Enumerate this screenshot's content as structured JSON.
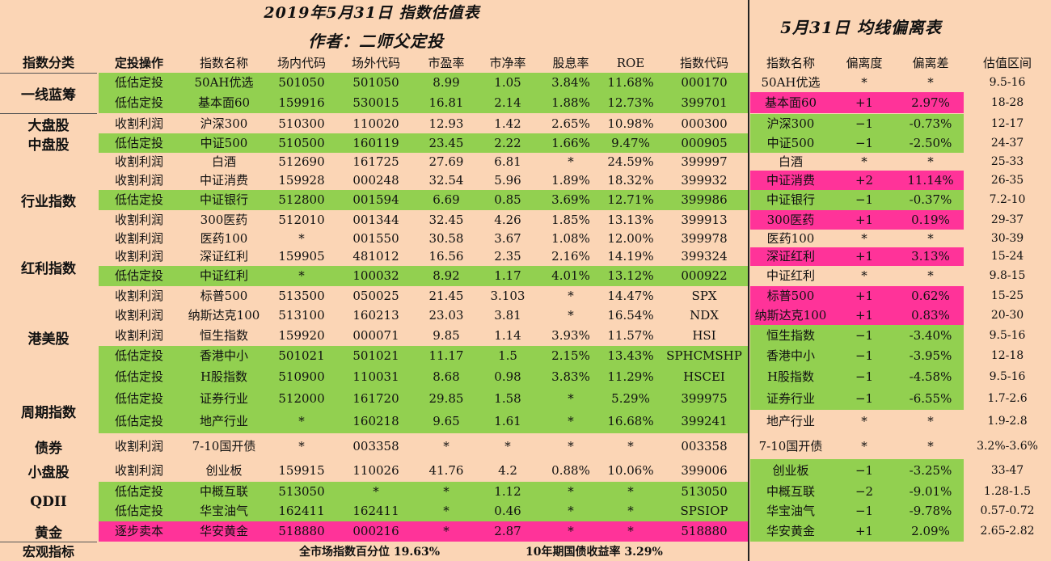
{
  "title_main": "2019年5月31日 指数估值表",
  "author": "作者：二师父定投",
  "title_right": "5月31日 均线偏离表",
  "headers": {
    "category": "指数分类",
    "action": "定投操作",
    "name": "指数名称",
    "onsite": "场内代码",
    "offsite": "场外代码",
    "pe": "市盈率",
    "pb": "市净率",
    "div": "股息率",
    "roe": "ROE",
    "code": "指数代码",
    "name2": "指数名称",
    "dev": "偏离度",
    "devdiff": "偏离差",
    "range": "估值区间"
  },
  "categories": [
    {
      "label": "一线蓝筹",
      "rows": [
        0,
        1
      ]
    },
    {
      "label": "大盘股",
      "rows": [
        2
      ]
    },
    {
      "label": "中盘股",
      "rows": [
        3
      ]
    },
    {
      "label": "行业指数",
      "rows": [
        4,
        5,
        6,
        7,
        8
      ]
    },
    {
      "label": "红利指数",
      "rows": [
        9,
        10
      ]
    },
    {
      "label": "港美股",
      "rows": [
        11,
        12,
        13,
        14,
        15
      ]
    },
    {
      "label": "周期指数",
      "rows": [
        16,
        17
      ]
    },
    {
      "label": "债券",
      "rows": [
        18
      ]
    },
    {
      "label": "小盘股",
      "rows": [
        19
      ]
    },
    {
      "label": "QDII",
      "rows": [
        20,
        21
      ]
    },
    {
      "label": "黄金",
      "rows": [
        22
      ]
    }
  ],
  "rows": [
    {
      "action": "低估定投",
      "name": "50AH优选",
      "onsite": "501050",
      "offsite": "501050",
      "pe": "8.99",
      "pb": "1.05",
      "div": "3.84%",
      "roe": "11.68%",
      "code": "000170",
      "name2": "50AH优选",
      "dev": "*",
      "devdiff": "*",
      "range": "9.5-16",
      "left": "g",
      "right": "n"
    },
    {
      "action": "低估定投",
      "name": "基本面60",
      "onsite": "159916",
      "offsite": "530015",
      "pe": "16.81",
      "pb": "2.14",
      "div": "1.88%",
      "roe": "12.73%",
      "code": "399701",
      "name2": "基本面60",
      "dev": "+1",
      "devdiff": "2.97%",
      "range": "18-28",
      "left": "g",
      "right": "p"
    },
    {
      "action": "收割利润",
      "name": "沪深300",
      "onsite": "510300",
      "offsite": "110020",
      "pe": "12.93",
      "pb": "1.42",
      "div": "2.65%",
      "roe": "10.98%",
      "code": "000300",
      "name2": "沪深300",
      "dev": "−1",
      "devdiff": "-0.73%",
      "range": "12-17",
      "left": "n",
      "right": "g"
    },
    {
      "action": "低估定投",
      "name": "中证500",
      "onsite": "510500",
      "offsite": "160119",
      "pe": "23.45",
      "pb": "2.22",
      "div": "1.66%",
      "roe": "9.47%",
      "code": "000905",
      "name2": "中证500",
      "dev": "−1",
      "devdiff": "-2.50%",
      "range": "24-37",
      "left": "g",
      "right": "g"
    },
    {
      "action": "收割利润",
      "name": "白酒",
      "onsite": "512690",
      "offsite": "161725",
      "pe": "27.69",
      "pb": "6.81",
      "div": "*",
      "roe": "24.59%",
      "code": "399997",
      "name2": "白酒",
      "dev": "*",
      "devdiff": "*",
      "range": "25-33",
      "left": "n",
      "right": "n"
    },
    {
      "action": "收割利润",
      "name": "中证消费",
      "onsite": "159928",
      "offsite": "000248",
      "pe": "32.54",
      "pb": "5.96",
      "div": "1.89%",
      "roe": "18.32%",
      "code": "399932",
      "name2": "中证消费",
      "dev": "+2",
      "devdiff": "11.14%",
      "range": "26-35",
      "left": "n",
      "right": "p"
    },
    {
      "action": "低估定投",
      "name": "中证银行",
      "onsite": "512800",
      "offsite": "001594",
      "pe": "6.69",
      "pb": "0.85",
      "div": "3.69%",
      "roe": "12.71%",
      "code": "399986",
      "name2": "中证银行",
      "dev": "−1",
      "devdiff": "-0.37%",
      "range": "7.2-10",
      "left": "g",
      "right": "g"
    },
    {
      "action": "收割利润",
      "name": "300医药",
      "onsite": "512010",
      "offsite": "001344",
      "pe": "32.45",
      "pb": "4.26",
      "div": "1.85%",
      "roe": "13.13%",
      "code": "399913",
      "name2": "300医药",
      "dev": "+1",
      "devdiff": "0.19%",
      "range": "29-37",
      "left": "n",
      "right": "p"
    },
    {
      "action": "收割利润",
      "name": "医药100",
      "onsite": "*",
      "offsite": "001550",
      "pe": "30.58",
      "pb": "3.67",
      "div": "1.08%",
      "roe": "12.00%",
      "code": "399978",
      "name2": "医药100",
      "dev": "*",
      "devdiff": "*",
      "range": "30-39",
      "left": "n",
      "right": "n"
    },
    {
      "action": "收割利润",
      "name": "深证红利",
      "onsite": "159905",
      "offsite": "481012",
      "pe": "16.56",
      "pb": "2.35",
      "div": "2.16%",
      "roe": "14.19%",
      "code": "399324",
      "name2": "深证红利",
      "dev": "+1",
      "devdiff": "3.13%",
      "range": "15-24",
      "left": "n",
      "right": "p"
    },
    {
      "action": "低估定投",
      "name": "中证红利",
      "onsite": "*",
      "offsite": "100032",
      "pe": "8.92",
      "pb": "1.17",
      "div": "4.01%",
      "roe": "13.12%",
      "code": "000922",
      "name2": "中证红利",
      "dev": "*",
      "devdiff": "*",
      "range": "9.8-15",
      "left": "g",
      "right": "n"
    },
    {
      "action": "收割利润",
      "name": "标普500",
      "onsite": "513500",
      "offsite": "050025",
      "pe": "21.45",
      "pb": "3.103",
      "div": "*",
      "roe": "14.47%",
      "code": "SPX",
      "name2": "标普500",
      "dev": "+1",
      "devdiff": "0.62%",
      "range": "15-25",
      "left": "n",
      "right": "p"
    },
    {
      "action": "收割利润",
      "name": "纳斯达克100",
      "onsite": "513100",
      "offsite": "160213",
      "pe": "23.03",
      "pb": "3.81",
      "div": "*",
      "roe": "16.54%",
      "code": "NDX",
      "name2": "纳斯达克100",
      "dev": "+1",
      "devdiff": "0.83%",
      "range": "20-30",
      "left": "n",
      "right": "p"
    },
    {
      "action": "收割利润",
      "name": "恒生指数",
      "onsite": "159920",
      "offsite": "000071",
      "pe": "9.85",
      "pb": "1.14",
      "div": "3.93%",
      "roe": "11.57%",
      "code": "HSI",
      "name2": "恒生指数",
      "dev": "−1",
      "devdiff": "-3.40%",
      "range": "9.5-16",
      "left": "n",
      "right": "g"
    },
    {
      "action": "低估定投",
      "name": "香港中小",
      "onsite": "501021",
      "offsite": "501021",
      "pe": "11.17",
      "pb": "1.5",
      "div": "2.15%",
      "roe": "13.43%",
      "code": "SPHCMSHP",
      "name2": "香港中小",
      "dev": "−1",
      "devdiff": "-3.95%",
      "range": "12-18",
      "left": "g",
      "right": "g"
    },
    {
      "action": "低估定投",
      "name": "H股指数",
      "onsite": "510900",
      "offsite": "110031",
      "pe": "8.68",
      "pb": "0.98",
      "div": "3.83%",
      "roe": "11.29%",
      "code": "HSCEI",
      "name2": "H股指数",
      "dev": "−1",
      "devdiff": "-4.58%",
      "range": "9.5-16",
      "left": "g",
      "right": "g"
    },
    {
      "action": "低估定投",
      "name": "证券行业",
      "onsite": "512000",
      "offsite": "161720",
      "pe": "29.85",
      "pb": "1.58",
      "div": "*",
      "roe": "5.29%",
      "code": "399975",
      "name2": "证券行业",
      "dev": "−1",
      "devdiff": "-6.55%",
      "range": "1.7-2.6",
      "left": "g",
      "right": "g"
    },
    {
      "action": "低估定投",
      "name": "地产行业",
      "onsite": "*",
      "offsite": "160218",
      "pe": "9.65",
      "pb": "1.61",
      "div": "*",
      "roe": "16.68%",
      "code": "399241",
      "name2": "地产行业",
      "dev": "*",
      "devdiff": "*",
      "range": "1.9-2.8",
      "left": "g",
      "right": "n"
    },
    {
      "action": "收割利润",
      "name": "7-10国开债",
      "onsite": "*",
      "offsite": "003358",
      "pe": "*",
      "pb": "*",
      "div": "*",
      "roe": "*",
      "code": "003358",
      "name2": "7-10国开债",
      "dev": "*",
      "devdiff": "*",
      "range": "3.2%-3.6%",
      "left": "n",
      "right": "n"
    },
    {
      "action": "收割利润",
      "name": "创业板",
      "onsite": "159915",
      "offsite": "110026",
      "pe": "41.76",
      "pb": "4.2",
      "div": "0.88%",
      "roe": "10.06%",
      "code": "399006",
      "name2": "创业板",
      "dev": "−1",
      "devdiff": "-3.25%",
      "range": "33-47",
      "left": "n",
      "right": "g"
    },
    {
      "action": "低估定投",
      "name": "中概互联",
      "onsite": "513050",
      "offsite": "*",
      "pe": "*",
      "pb": "1.12",
      "div": "*",
      "roe": "*",
      "code": "513050",
      "name2": "中概互联",
      "dev": "−2",
      "devdiff": "-9.01%",
      "range": "1.28-1.5",
      "left": "g",
      "right": "g"
    },
    {
      "action": "低估定投",
      "name": "华宝油气",
      "onsite": "162411",
      "offsite": "162411",
      "pe": "*",
      "pb": "0.46",
      "div": "*",
      "roe": "*",
      "code": "SPSIOP",
      "name2": "华宝油气",
      "dev": "−1",
      "devdiff": "-9.78%",
      "range": "0.57-0.72",
      "left": "g",
      "right": "g"
    },
    {
      "action": "逐步卖本",
      "name": "华安黄金",
      "onsite": "518880",
      "offsite": "000216",
      "pe": "*",
      "pb": "2.87",
      "div": "*",
      "roe": "*",
      "code": "518880",
      "name2": "华安黄金",
      "dev": "+1",
      "devdiff": "2.09%",
      "range": "2.65-2.82",
      "left": "p",
      "right": "g"
    }
  ],
  "footer": {
    "label": "宏观指标",
    "percentile": "全市场指数百分位 19.63%",
    "bond": "10年期国债收益率 3.29%"
  },
  "colors": {
    "bg": "#fbd5b5",
    "green": "#92d050",
    "pink": "#ff3399"
  }
}
